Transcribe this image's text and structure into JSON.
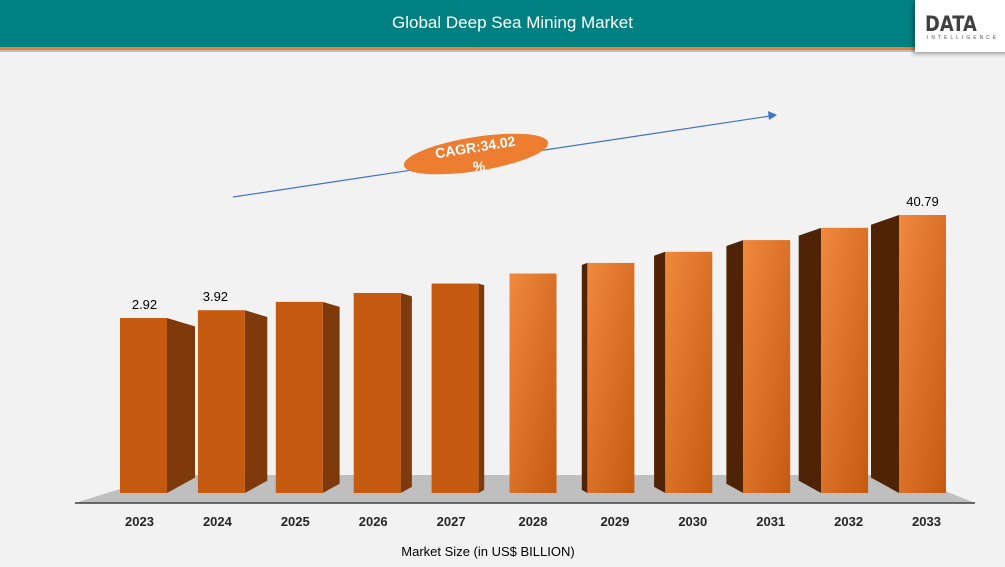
{
  "header": {
    "title": "Global Deep Sea Mining Market"
  },
  "logo": {
    "text": "DATA",
    "subtext": "INTELLIGENCE"
  },
  "colors": {
    "header": "#008080",
    "accent_line": "#ed7d31",
    "bar": "#c55a11",
    "bar_side_left": "#7f3a0b",
    "bar_side_right": "#4f2306",
    "floor": "#bfbfbf",
    "arrow": "#4472c4",
    "cagr_ellipse": "#ed7d31"
  },
  "chart_data": {
    "type": "bar",
    "style": "3d-columns",
    "categories": [
      "2023",
      "2024",
      "2025",
      "2026",
      "2027",
      "2028",
      "2029",
      "2030",
      "2031",
      "2032",
      "2033"
    ],
    "values": [
      2.92,
      3.92,
      null,
      null,
      null,
      null,
      null,
      null,
      null,
      null,
      40.79
    ],
    "data_labels": [
      "2.92",
      "3.92",
      "",
      "",
      "",
      "",
      "",
      "",
      "",
      "",
      "40.79"
    ],
    "xlabel": "Market Size (in US$ BILLION)",
    "ylabel": "",
    "grid": false,
    "annotation": {
      "text_line1": "CAGR:34.02",
      "text_line2": "%",
      "icon": "trend-arrow-icon"
    }
  }
}
